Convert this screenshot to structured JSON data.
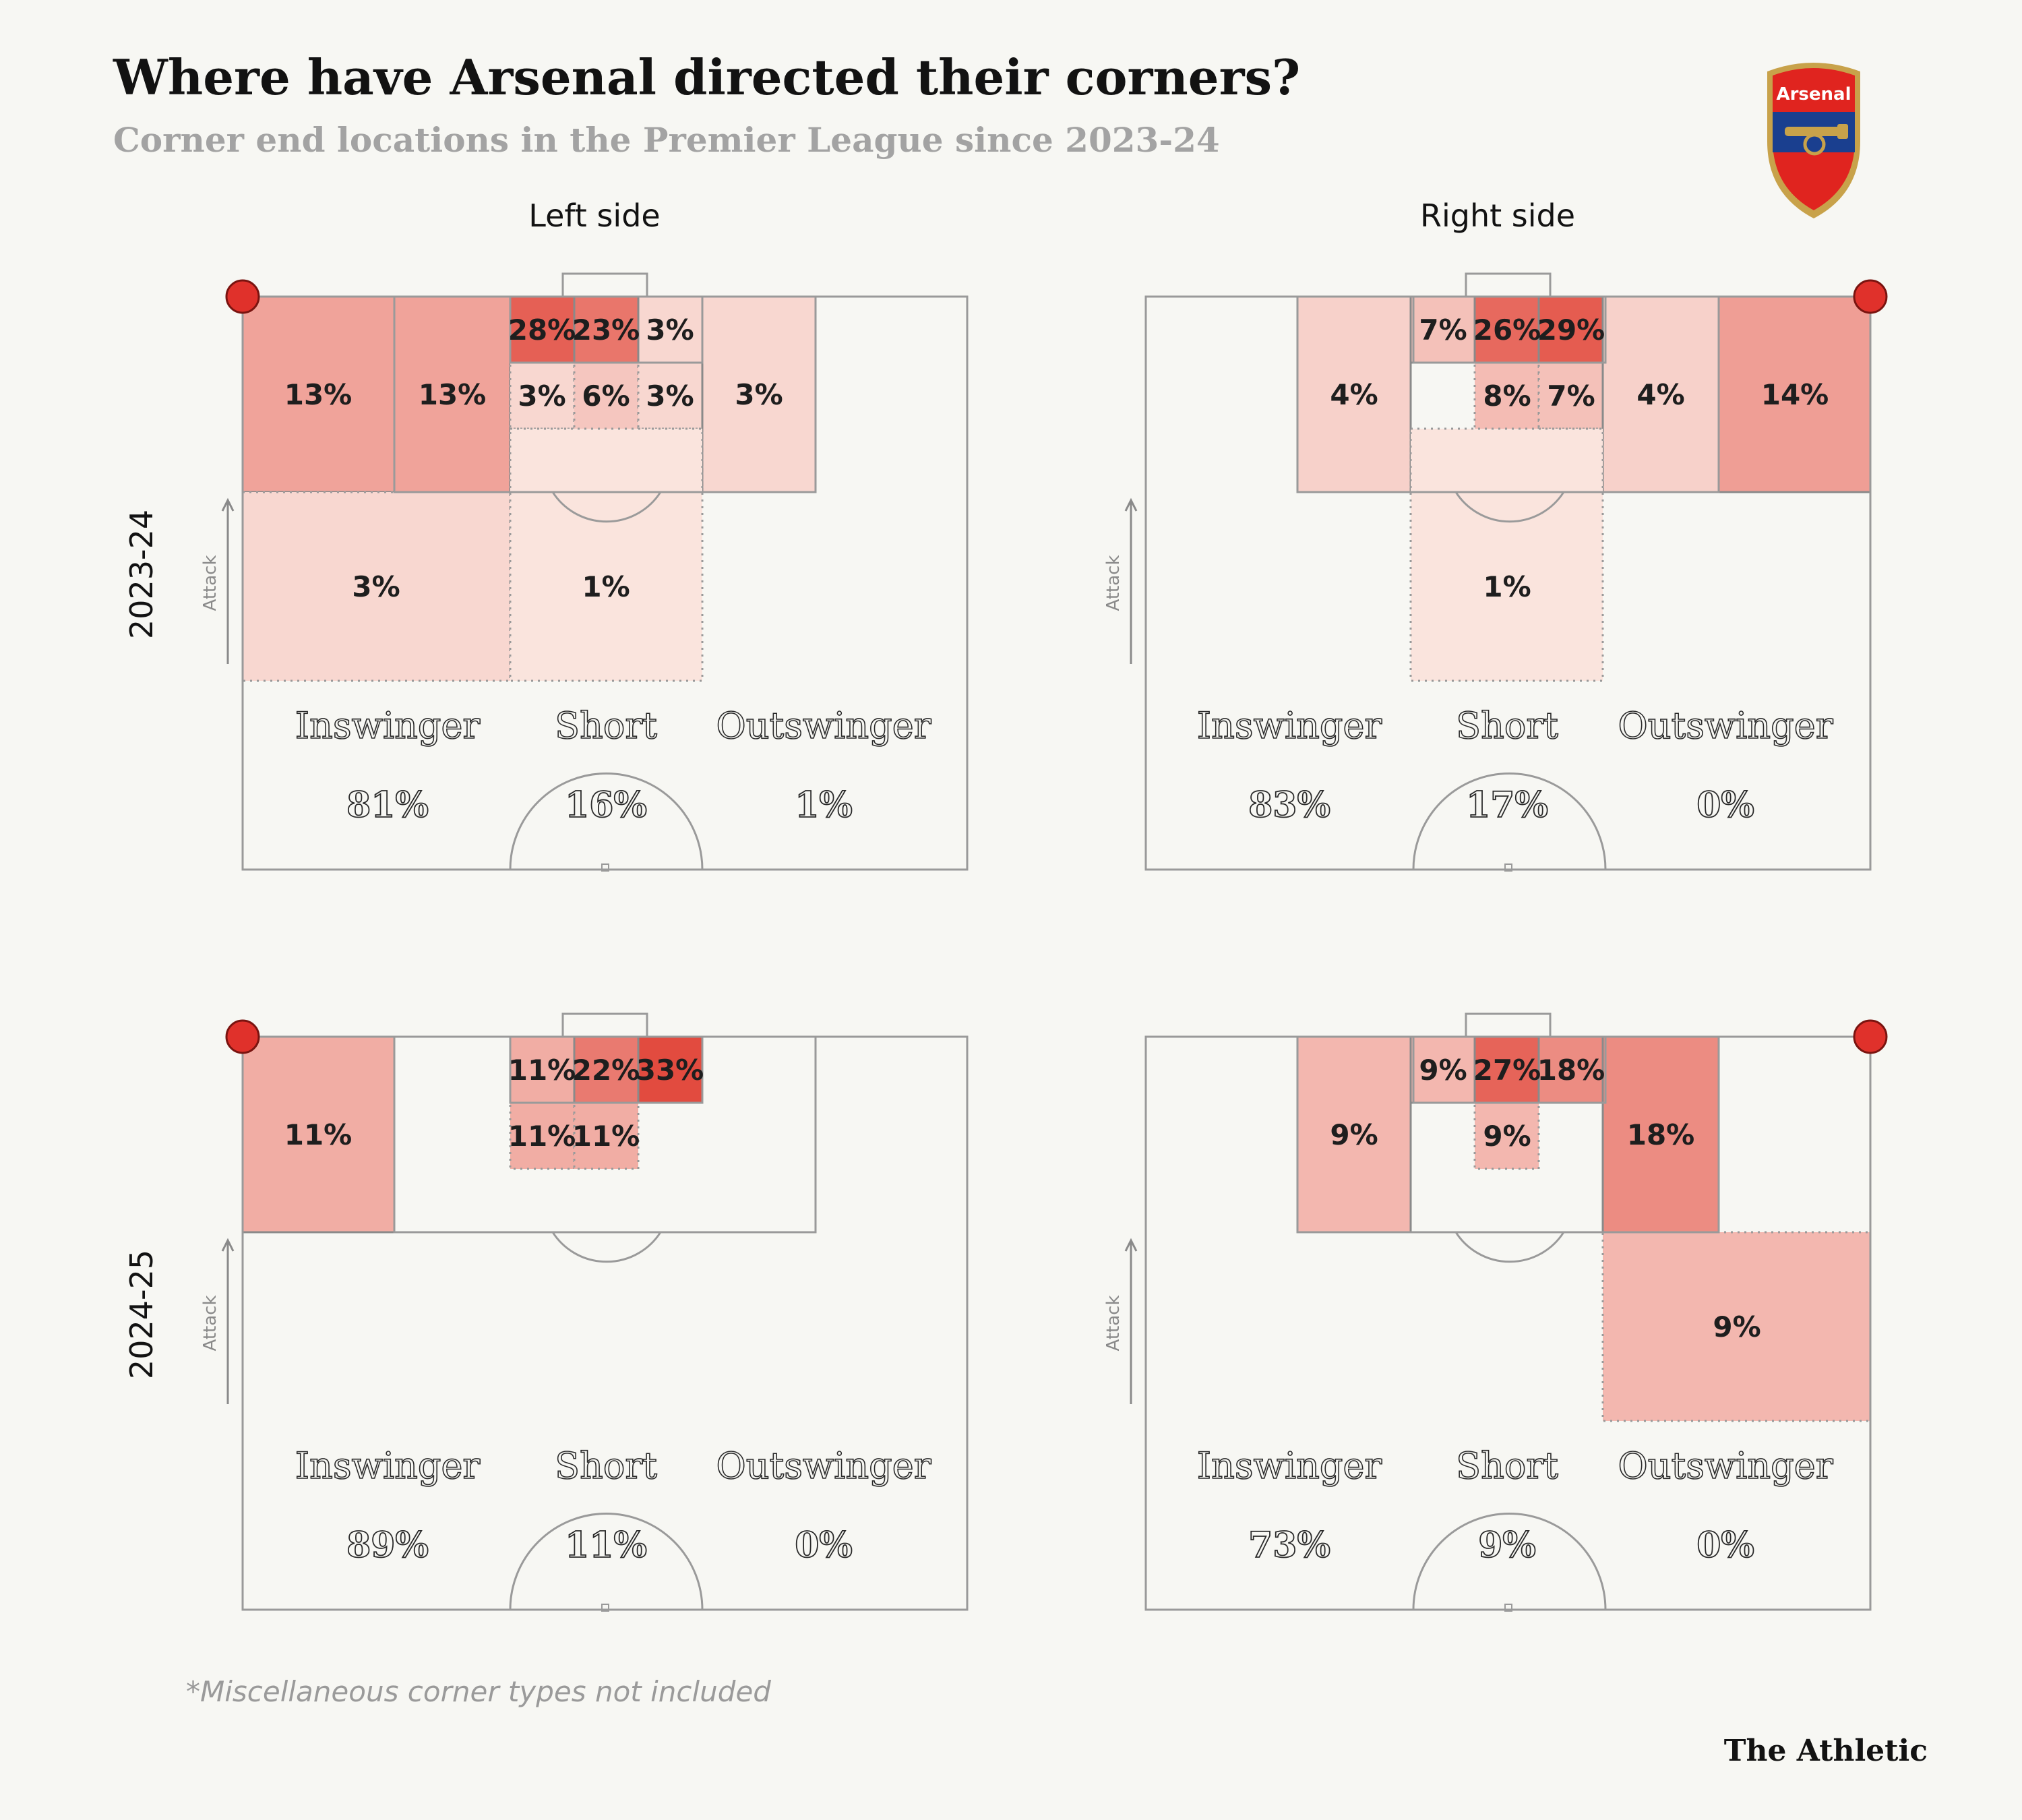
{
  "title": "Where have Arsenal directed their corners?",
  "subtitle": "Corner end locations in the Premier League since 2023-24",
  "column_headers": [
    "Left side",
    "Right side"
  ],
  "row_headers": [
    "2023-24",
    "2024-25"
  ],
  "attack_label": "Attack",
  "footnote": "*Miscellaneous corner types not included",
  "brand": "The Athletic",
  "crest_text": "Arsenal",
  "colors": {
    "background": "#f7f7f3",
    "corner_marker": "#e0312b",
    "heat_low": "#fbece6",
    "heat_high": "#e24b3f",
    "pitch_line": "#9a9a9a"
  },
  "chart_data": [
    {
      "type": "heatmap",
      "season": "2023-24",
      "side": "Left side",
      "zones": [
        {
          "zone": "near-post wide",
          "value": 13
        },
        {
          "zone": "near six-yard edge",
          "value": 13
        },
        {
          "zone": "six-yard box near",
          "value": 28
        },
        {
          "zone": "six-yard box centre",
          "value": 23
        },
        {
          "zone": "six-yard box far",
          "value": 3
        },
        {
          "zone": "penalty spot near",
          "value": 3
        },
        {
          "zone": "penalty spot centre",
          "value": 6
        },
        {
          "zone": "penalty spot far",
          "value": 3
        },
        {
          "zone": "far post wide",
          "value": 3
        },
        {
          "zone": "edge of box wide",
          "value": 3
        },
        {
          "zone": "edge of box central",
          "value": 1
        }
      ],
      "corner_types": [
        {
          "label": "Inswinger",
          "value": "81%"
        },
        {
          "label": "Short",
          "value": "16%"
        },
        {
          "label": "Outswinger",
          "value": "1%"
        }
      ]
    },
    {
      "type": "heatmap",
      "season": "2023-24",
      "side": "Right side",
      "zones": [
        {
          "zone": "far post wide",
          "value": 4
        },
        {
          "zone": "six-yard box far",
          "value": 7
        },
        {
          "zone": "six-yard box centre",
          "value": 26
        },
        {
          "zone": "six-yard box near",
          "value": 29
        },
        {
          "zone": "penalty spot centre",
          "value": 8
        },
        {
          "zone": "penalty spot near",
          "value": 7
        },
        {
          "zone": "near six-yard edge",
          "value": 4
        },
        {
          "zone": "near-post wide",
          "value": 14
        },
        {
          "zone": "edge of box central",
          "value": 1
        }
      ],
      "corner_types": [
        {
          "label": "Inswinger",
          "value": "83%"
        },
        {
          "label": "Short",
          "value": "17%"
        },
        {
          "label": "Outswinger",
          "value": "0%"
        }
      ]
    },
    {
      "type": "heatmap",
      "season": "2024-25",
      "side": "Left side",
      "zones": [
        {
          "zone": "near-post wide",
          "value": 11
        },
        {
          "zone": "six-yard box near",
          "value": 11
        },
        {
          "zone": "six-yard box centre",
          "value": 22
        },
        {
          "zone": "six-yard box far",
          "value": 33
        },
        {
          "zone": "penalty spot near",
          "value": 11
        },
        {
          "zone": "penalty spot centre",
          "value": 11
        }
      ],
      "corner_types": [
        {
          "label": "Inswinger",
          "value": "89%"
        },
        {
          "label": "Short",
          "value": "11%"
        },
        {
          "label": "Outswinger",
          "value": "0%"
        }
      ]
    },
    {
      "type": "heatmap",
      "season": "2024-25",
      "side": "Right side",
      "zones": [
        {
          "zone": "far post wide",
          "value": 9
        },
        {
          "zone": "six-yard box far",
          "value": 9
        },
        {
          "zone": "six-yard box centre",
          "value": 27
        },
        {
          "zone": "six-yard box near",
          "value": 18
        },
        {
          "zone": "penalty spot centre",
          "value": 9
        },
        {
          "zone": "near six-yard edge",
          "value": 18
        },
        {
          "zone": "edge of box wide",
          "value": 9
        }
      ],
      "corner_types": [
        {
          "label": "Inswinger",
          "value": "73%"
        },
        {
          "label": "Short",
          "value": "9%"
        },
        {
          "label": "Outswinger",
          "value": "0%"
        }
      ]
    }
  ]
}
